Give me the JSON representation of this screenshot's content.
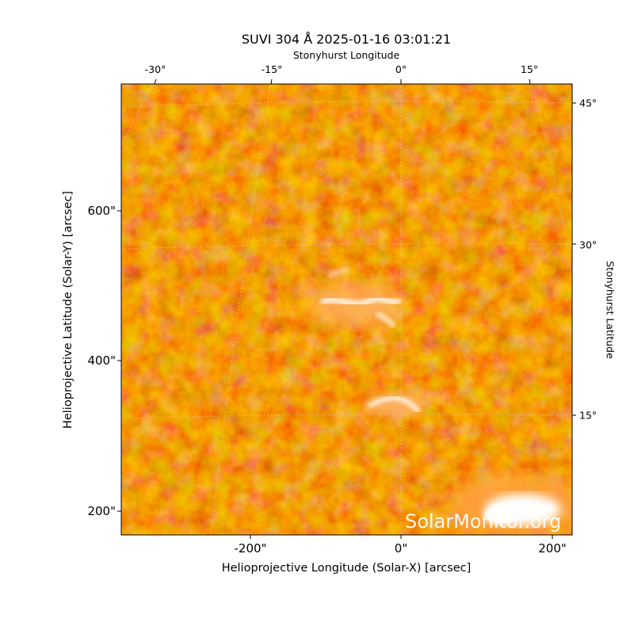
{
  "title": "SUVI 304 Å 2025-01-16 03:01:21",
  "top_axis_label": "Stonyhurst Longitude",
  "top_ticks": [
    "-30°",
    "-15°",
    "0°",
    "15°"
  ],
  "bottom_axis_label": "Helioprojective Longitude (Solar-X) [arcsec]",
  "bottom_ticks": [
    "-200\"",
    "0\"",
    "200\""
  ],
  "left_axis_label": "Helioprojective Latitude (Solar-Y) [arcsec]",
  "left_ticks": [
    "200\"",
    "400\"",
    "600\""
  ],
  "right_axis_label": "Stonyhurst Latitude",
  "right_ticks": [
    "15°",
    "30°",
    "45°"
  ],
  "watermark": "SolarMonitor.org",
  "colors": {
    "colormap_dark": "#a81800",
    "colormap_mid": "#e04a00",
    "colormap_bright": "#ff9a20",
    "colormap_peak": "#ffffff",
    "grid": "#e8d0c0"
  }
}
